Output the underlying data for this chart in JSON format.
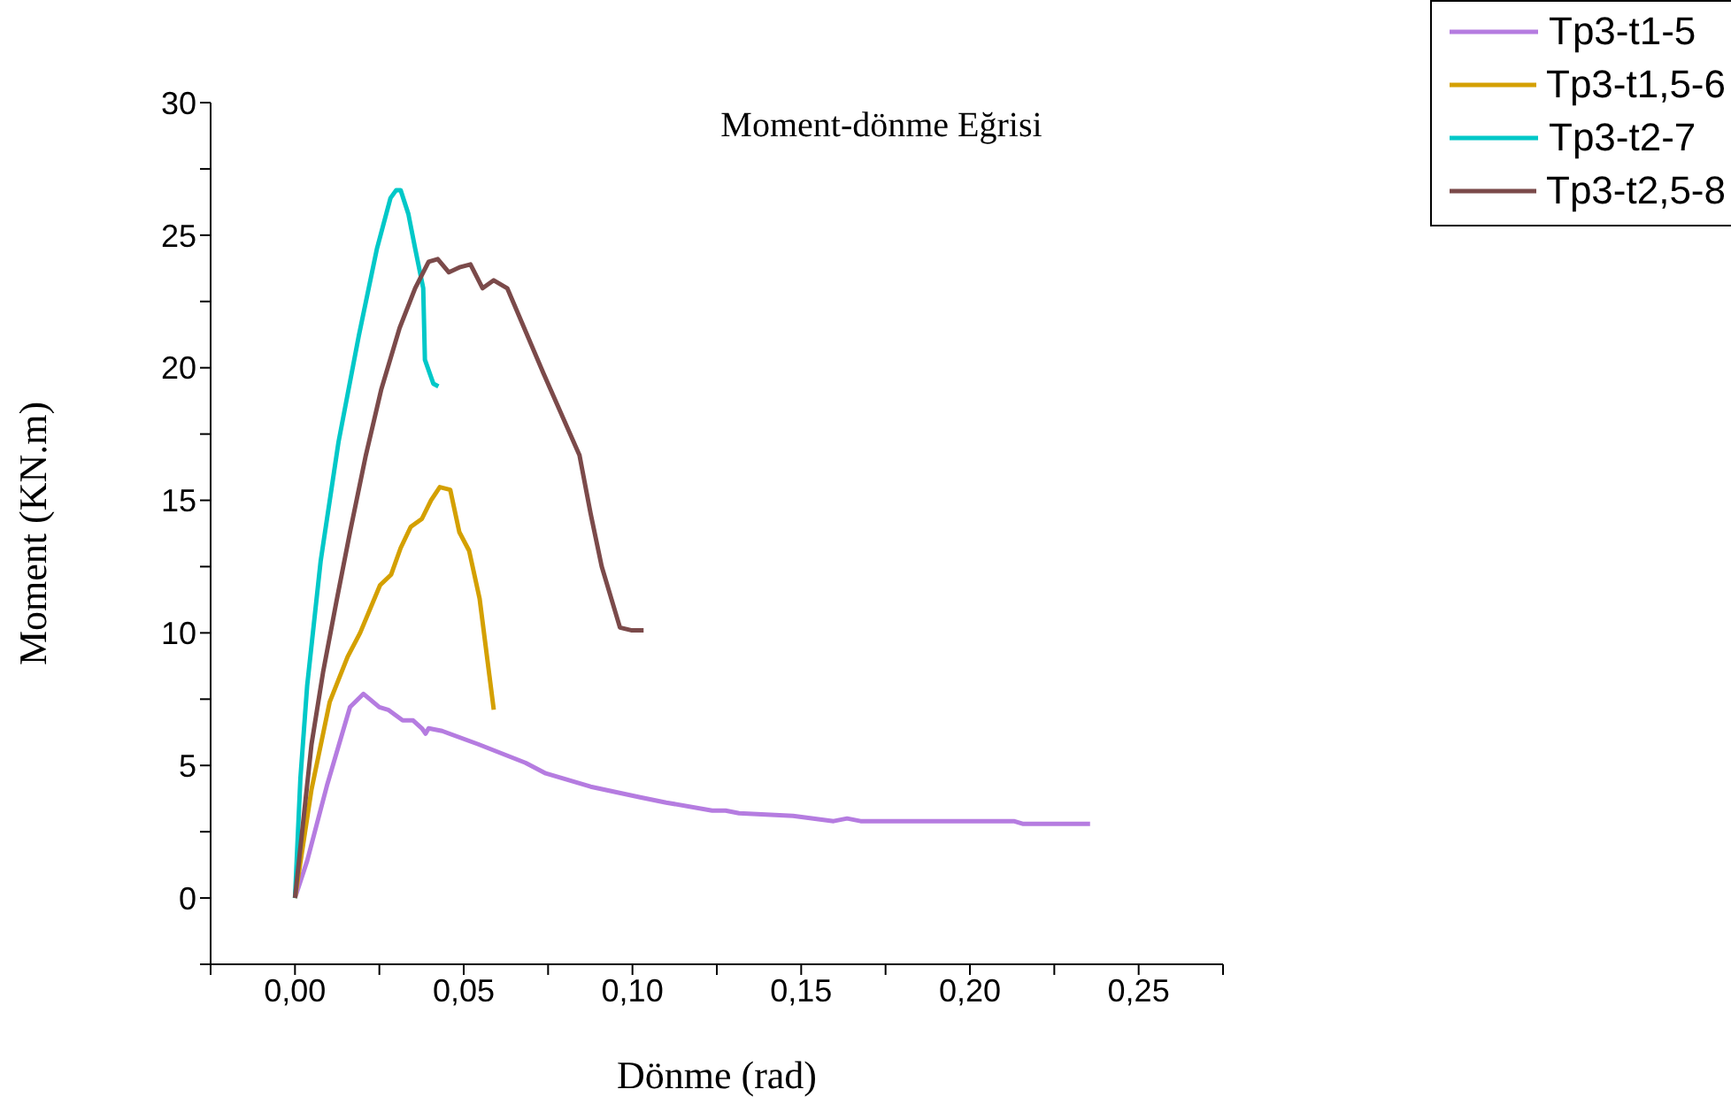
{
  "chart_data": {
    "type": "line",
    "title": "Moment-dönme Eğrisi",
    "xlabel": "Dönme (rad)",
    "ylabel": "Moment (KN.m)",
    "xlim": [
      -0.025,
      0.275
    ],
    "ylim": [
      -2.5,
      30
    ],
    "xticks": [
      {
        "value": -0.025,
        "label": null
      },
      {
        "value": 0,
        "label": "0,00"
      },
      {
        "value": 0.025,
        "label": null
      },
      {
        "value": 0.05,
        "label": "0,05"
      },
      {
        "value": 0.075,
        "label": null
      },
      {
        "value": 0.1,
        "label": "0,10"
      },
      {
        "value": 0.125,
        "label": null
      },
      {
        "value": 0.15,
        "label": "0,15"
      },
      {
        "value": 0.175,
        "label": null
      },
      {
        "value": 0.2,
        "label": "0,20"
      },
      {
        "value": 0.225,
        "label": null
      },
      {
        "value": 0.25,
        "label": "0,25"
      },
      {
        "value": 0.275,
        "label": null
      }
    ],
    "yticks": [
      {
        "value": -2.5,
        "label": null
      },
      0,
      {
        "value": 2.5,
        "label": null
      },
      5,
      {
        "value": 7.5,
        "label": null
      },
      10,
      {
        "value": 12.5,
        "label": null
      },
      15,
      {
        "value": 17.5,
        "label": null
      },
      20,
      {
        "value": 22.5,
        "label": null
      },
      25,
      {
        "value": 27.5,
        "label": null
      },
      30
    ],
    "grid": false,
    "legend": "top right",
    "marker": "none",
    "line_style": "solid",
    "series": [
      {
        "name": "Tp3-t1-5",
        "color": "#b57ce0",
        "x": [
          0,
          0.0036,
          0.0096,
          0.0163,
          0.0203,
          0.025,
          0.0276,
          0.0319,
          0.035,
          0.0376,
          0.0387,
          0.0396,
          0.0436,
          0.0543,
          0.0623,
          0.0683,
          0.0743,
          0.0876,
          0.1023,
          0.11,
          0.1236,
          0.1276,
          0.1316,
          0.1476,
          0.1596,
          0.1636,
          0.1676,
          0.213,
          0.2156,
          0.2356
        ],
        "values": [
          0,
          1.4,
          4.3,
          7.2,
          7.7,
          7.2,
          7.1,
          6.7,
          6.7,
          6.4,
          6.2,
          6.4,
          6.3,
          5.8,
          5.4,
          5.1,
          4.7,
          4.2,
          3.8,
          3.6,
          3.3,
          3.3,
          3.2,
          3.1,
          2.9,
          3.0,
          2.9,
          2.9,
          2.8,
          2.8
        ]
      },
      {
        "name": "Tp3-t1,5-6",
        "color": "#d4a000",
        "x": [
          0,
          0.0049,
          0.0103,
          0.0156,
          0.0193,
          0.0252,
          0.0285,
          0.0313,
          0.0343,
          0.0376,
          0.0403,
          0.0429,
          0.046,
          0.0487,
          0.0516,
          0.0547,
          0.0589
        ],
        "values": [
          0,
          4.1,
          7.4,
          9.1,
          10.0,
          11.8,
          12.2,
          13.2,
          14.0,
          14.3,
          15.0,
          15.5,
          15.4,
          13.8,
          13.1,
          11.3,
          7.1
        ]
      },
      {
        "name": "Tp3-t2-7",
        "color": "#00c8c8",
        "x": [
          0,
          0.0016,
          0.0036,
          0.0076,
          0.0129,
          0.0189,
          0.0243,
          0.0283,
          0.03,
          0.0313,
          0.0336,
          0.0356,
          0.038,
          0.0385,
          0.041,
          0.0425
        ],
        "values": [
          0,
          4.5,
          8.0,
          12.7,
          17.2,
          21.2,
          24.5,
          26.4,
          26.7,
          26.7,
          25.8,
          24.5,
          23.0,
          20.3,
          19.4,
          19.3
        ]
      },
      {
        "name": "Tp3-t2,5-8",
        "color": "#7b4a4a",
        "x": [
          0,
          0.0049,
          0.0083,
          0.0123,
          0.0163,
          0.021,
          0.0256,
          0.031,
          0.0356,
          0.0396,
          0.0423,
          0.0456,
          0.049,
          0.052,
          0.0556,
          0.0589,
          0.0629,
          0.0736,
          0.0843,
          0.0876,
          0.0909,
          0.0963,
          0.0996,
          0.1033
        ],
        "values": [
          0,
          5.8,
          8.5,
          11.2,
          13.8,
          16.7,
          19.2,
          21.5,
          23.0,
          24.0,
          24.1,
          23.6,
          23.8,
          23.9,
          23.0,
          23.3,
          23.0,
          19.8,
          16.7,
          14.5,
          12.5,
          10.2,
          10.1,
          10.1
        ]
      }
    ]
  }
}
